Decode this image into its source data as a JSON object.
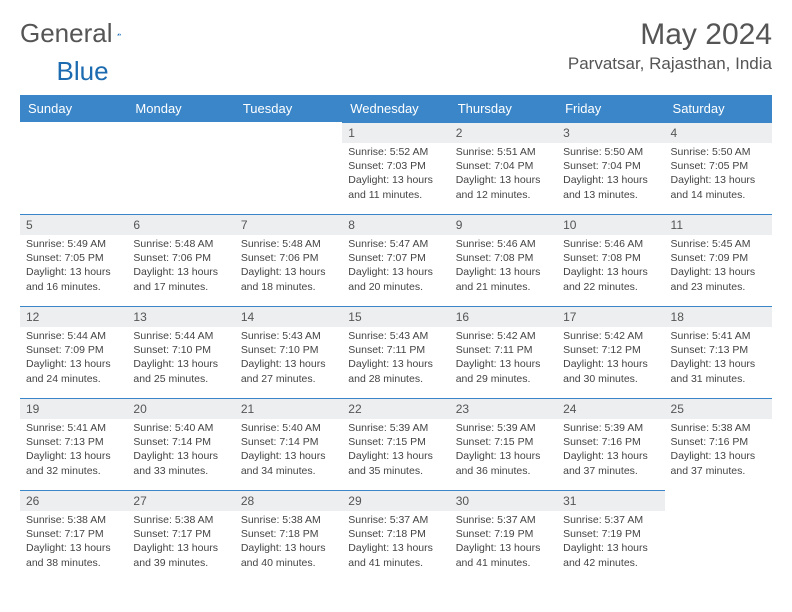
{
  "logo": {
    "text1": "General",
    "text2": "Blue"
  },
  "title": "May 2024",
  "location": "Parvatsar, Rajasthan, India",
  "colors": {
    "header_bg": "#3a86c8",
    "header_text": "#ffffff",
    "daynum_bg": "#eceef0",
    "border": "#3a86c8",
    "text": "#444444",
    "title": "#555555"
  },
  "weekdays": [
    "Sunday",
    "Monday",
    "Tuesday",
    "Wednesday",
    "Thursday",
    "Friday",
    "Saturday"
  ],
  "weeks": [
    [
      null,
      null,
      null,
      {
        "n": "1",
        "sr": "5:52 AM",
        "ss": "7:03 PM",
        "dl": "13 hours and 11 minutes."
      },
      {
        "n": "2",
        "sr": "5:51 AM",
        "ss": "7:04 PM",
        "dl": "13 hours and 12 minutes."
      },
      {
        "n": "3",
        "sr": "5:50 AM",
        "ss": "7:04 PM",
        "dl": "13 hours and 13 minutes."
      },
      {
        "n": "4",
        "sr": "5:50 AM",
        "ss": "7:05 PM",
        "dl": "13 hours and 14 minutes."
      }
    ],
    [
      {
        "n": "5",
        "sr": "5:49 AM",
        "ss": "7:05 PM",
        "dl": "13 hours and 16 minutes."
      },
      {
        "n": "6",
        "sr": "5:48 AM",
        "ss": "7:06 PM",
        "dl": "13 hours and 17 minutes."
      },
      {
        "n": "7",
        "sr": "5:48 AM",
        "ss": "7:06 PM",
        "dl": "13 hours and 18 minutes."
      },
      {
        "n": "8",
        "sr": "5:47 AM",
        "ss": "7:07 PM",
        "dl": "13 hours and 20 minutes."
      },
      {
        "n": "9",
        "sr": "5:46 AM",
        "ss": "7:08 PM",
        "dl": "13 hours and 21 minutes."
      },
      {
        "n": "10",
        "sr": "5:46 AM",
        "ss": "7:08 PM",
        "dl": "13 hours and 22 minutes."
      },
      {
        "n": "11",
        "sr": "5:45 AM",
        "ss": "7:09 PM",
        "dl": "13 hours and 23 minutes."
      }
    ],
    [
      {
        "n": "12",
        "sr": "5:44 AM",
        "ss": "7:09 PM",
        "dl": "13 hours and 24 minutes."
      },
      {
        "n": "13",
        "sr": "5:44 AM",
        "ss": "7:10 PM",
        "dl": "13 hours and 25 minutes."
      },
      {
        "n": "14",
        "sr": "5:43 AM",
        "ss": "7:10 PM",
        "dl": "13 hours and 27 minutes."
      },
      {
        "n": "15",
        "sr": "5:43 AM",
        "ss": "7:11 PM",
        "dl": "13 hours and 28 minutes."
      },
      {
        "n": "16",
        "sr": "5:42 AM",
        "ss": "7:11 PM",
        "dl": "13 hours and 29 minutes."
      },
      {
        "n": "17",
        "sr": "5:42 AM",
        "ss": "7:12 PM",
        "dl": "13 hours and 30 minutes."
      },
      {
        "n": "18",
        "sr": "5:41 AM",
        "ss": "7:13 PM",
        "dl": "13 hours and 31 minutes."
      }
    ],
    [
      {
        "n": "19",
        "sr": "5:41 AM",
        "ss": "7:13 PM",
        "dl": "13 hours and 32 minutes."
      },
      {
        "n": "20",
        "sr": "5:40 AM",
        "ss": "7:14 PM",
        "dl": "13 hours and 33 minutes."
      },
      {
        "n": "21",
        "sr": "5:40 AM",
        "ss": "7:14 PM",
        "dl": "13 hours and 34 minutes."
      },
      {
        "n": "22",
        "sr": "5:39 AM",
        "ss": "7:15 PM",
        "dl": "13 hours and 35 minutes."
      },
      {
        "n": "23",
        "sr": "5:39 AM",
        "ss": "7:15 PM",
        "dl": "13 hours and 36 minutes."
      },
      {
        "n": "24",
        "sr": "5:39 AM",
        "ss": "7:16 PM",
        "dl": "13 hours and 37 minutes."
      },
      {
        "n": "25",
        "sr": "5:38 AM",
        "ss": "7:16 PM",
        "dl": "13 hours and 37 minutes."
      }
    ],
    [
      {
        "n": "26",
        "sr": "5:38 AM",
        "ss": "7:17 PM",
        "dl": "13 hours and 38 minutes."
      },
      {
        "n": "27",
        "sr": "5:38 AM",
        "ss": "7:17 PM",
        "dl": "13 hours and 39 minutes."
      },
      {
        "n": "28",
        "sr": "5:38 AM",
        "ss": "7:18 PM",
        "dl": "13 hours and 40 minutes."
      },
      {
        "n": "29",
        "sr": "5:37 AM",
        "ss": "7:18 PM",
        "dl": "13 hours and 41 minutes."
      },
      {
        "n": "30",
        "sr": "5:37 AM",
        "ss": "7:19 PM",
        "dl": "13 hours and 41 minutes."
      },
      {
        "n": "31",
        "sr": "5:37 AM",
        "ss": "7:19 PM",
        "dl": "13 hours and 42 minutes."
      },
      null
    ]
  ],
  "labels": {
    "sunrise": "Sunrise:",
    "sunset": "Sunset:",
    "daylight": "Daylight:"
  }
}
